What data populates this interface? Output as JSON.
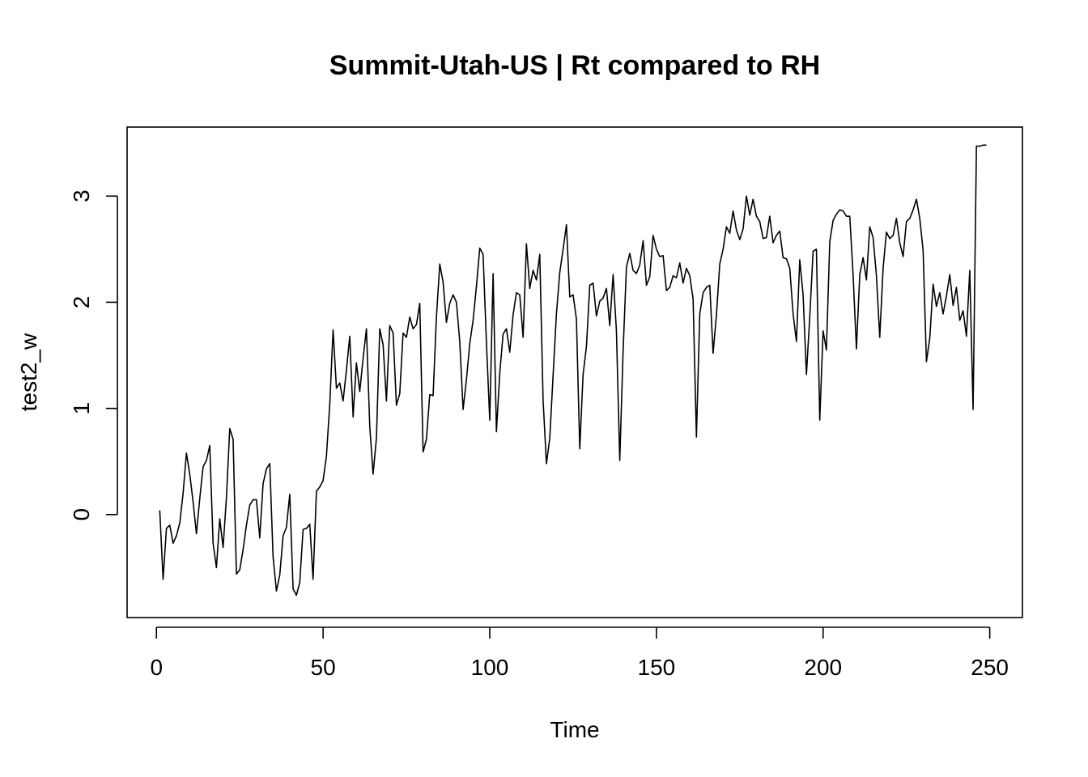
{
  "chart_data": {
    "type": "line",
    "title": "Summit-Utah-US | Rt compared to RH",
    "xlabel": "Time",
    "ylabel": "test2_w",
    "xlim": [
      -8.8,
      259.8
    ],
    "ylim": [
      -0.97,
      3.65
    ],
    "x_ticks": [
      0,
      50,
      100,
      150,
      200,
      250
    ],
    "y_ticks": [
      0,
      1,
      2,
      3
    ],
    "grid": false,
    "legend": "none",
    "series": [
      {
        "color": "#000000",
        "x_start": 1,
        "values": [
          0.04,
          -0.61,
          -0.13,
          -0.1,
          -0.27,
          -0.2,
          -0.08,
          0.2,
          0.58,
          0.38,
          0.12,
          -0.18,
          0.15,
          0.45,
          0.51,
          0.65,
          -0.27,
          -0.5,
          -0.04,
          -0.31,
          0.16,
          0.81,
          0.71,
          -0.56,
          -0.52,
          -0.33,
          -0.1,
          0.09,
          0.14,
          0.14,
          -0.22,
          0.29,
          0.43,
          0.48,
          -0.4,
          -0.72,
          -0.57,
          -0.2,
          -0.12,
          0.19,
          -0.7,
          -0.76,
          -0.64,
          -0.14,
          -0.13,
          -0.09,
          -0.61,
          0.22,
          0.26,
          0.32,
          0.55,
          1.04,
          1.74,
          1.19,
          1.24,
          1.07,
          1.36,
          1.68,
          0.92,
          1.43,
          1.16,
          1.47,
          1.75,
          0.83,
          0.38,
          0.72,
          1.75,
          1.6,
          1.07,
          1.78,
          1.71,
          1.03,
          1.14,
          1.71,
          1.67,
          1.86,
          1.75,
          1.79,
          1.99,
          0.59,
          0.71,
          1.13,
          1.12,
          1.86,
          2.36,
          2.19,
          1.81,
          1.99,
          2.07,
          2.0,
          1.63,
          0.99,
          1.27,
          1.61,
          1.83,
          2.15,
          2.51,
          2.45,
          1.62,
          0.89,
          2.27,
          0.78,
          1.33,
          1.7,
          1.75,
          1.53,
          1.88,
          2.09,
          2.07,
          1.67,
          2.55,
          2.13,
          2.3,
          2.21,
          2.45,
          1.08,
          0.48,
          0.72,
          1.31,
          1.89,
          2.28,
          2.5,
          2.73,
          2.05,
          2.07,
          1.84,
          0.62,
          1.32,
          1.58,
          2.16,
          2.18,
          1.87,
          2.01,
          2.04,
          2.13,
          1.78,
          2.26,
          1.73,
          0.51,
          1.54,
          2.33,
          2.46,
          2.3,
          2.27,
          2.35,
          2.58,
          2.16,
          2.24,
          2.63,
          2.5,
          2.43,
          2.44,
          2.11,
          2.14,
          2.25,
          2.23,
          2.37,
          2.18,
          2.32,
          2.25,
          2.03,
          0.73,
          1.89,
          2.09,
          2.14,
          2.16,
          1.52,
          1.88,
          2.36,
          2.5,
          2.71,
          2.65,
          2.86,
          2.68,
          2.59,
          2.69,
          3.0,
          2.82,
          2.97,
          2.81,
          2.76,
          2.6,
          2.61,
          2.81,
          2.56,
          2.63,
          2.67,
          2.42,
          2.41,
          2.32,
          1.89,
          1.63,
          2.4,
          2.07,
          1.32,
          1.86,
          2.48,
          2.5,
          0.89,
          1.73,
          1.55,
          2.57,
          2.77,
          2.83,
          2.87,
          2.86,
          2.81,
          2.81,
          2.26,
          1.56,
          2.26,
          2.42,
          2.21,
          2.71,
          2.61,
          2.25,
          1.67,
          2.32,
          2.66,
          2.6,
          2.63,
          2.79,
          2.56,
          2.43,
          2.76,
          2.79,
          2.87,
          2.97,
          2.79,
          2.49,
          1.44,
          1.66,
          2.17,
          1.96,
          2.09,
          1.89,
          2.06,
          2.26,
          1.97,
          2.14,
          1.83,
          1.92,
          1.68,
          2.3,
          0.99,
          3.47,
          3.47,
          3.48,
          3.48
        ]
      }
    ]
  }
}
